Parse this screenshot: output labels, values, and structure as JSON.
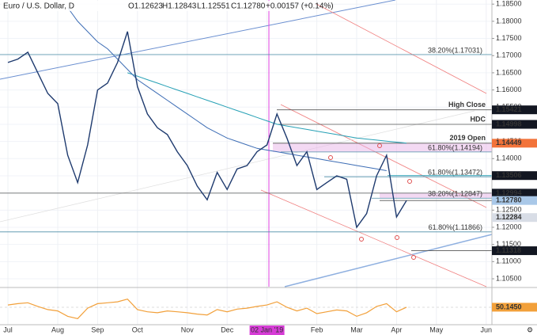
{
  "chart_data": [
    {
      "type": "line",
      "title": "Euro / U.S. Dollar, D",
      "ohlc": [
        "O1.12623",
        "H1.12843",
        "L1.12551",
        "C1.12780",
        "+0.00157 (+0.14%)"
      ],
      "categories": [
        "Jul",
        null,
        null,
        null,
        null,
        "Aug",
        null,
        null,
        null,
        "Sep",
        null,
        null,
        null,
        "Oct",
        null,
        null,
        null,
        null,
        "Nov",
        null,
        null,
        null,
        "Dec",
        null,
        null,
        null,
        "02 Jan '19",
        null,
        null,
        null,
        null,
        "Feb",
        null,
        null,
        null,
        "Mar",
        null,
        null,
        null,
        "Apr",
        null,
        null,
        null,
        "May",
        null,
        null,
        null,
        null,
        "Jun"
      ],
      "highlight_category": 26,
      "series": [
        {
          "color": "#1e3a6e",
          "values": [
            1.168,
            1.169,
            1.171,
            1.165,
            1.159,
            1.156,
            1.141,
            1.133,
            1.144,
            1.16,
            1.162,
            1.168,
            1.177,
            1.161,
            1.153,
            1.149,
            1.147,
            1.142,
            1.138,
            1.132,
            1.128,
            1.136,
            1.131,
            1.137,
            1.138,
            1.142,
            1.144,
            1.153,
            1.146,
            1.138,
            1.142,
            1.131,
            1.133,
            1.135,
            1.134,
            1.12,
            1.124,
            1.135,
            1.141,
            1.123,
            1.1278,
            null,
            null,
            null,
            null,
            null,
            null,
            null,
            null
          ]
        },
        {
          "color": "#3d6db5",
          "values": [
            null,
            null,
            null,
            null,
            null,
            null,
            1.184,
            1.18,
            1.177,
            1.174,
            1.172,
            1.169,
            1.166,
            1.163,
            1.161,
            1.159,
            1.157,
            1.155,
            1.153,
            1.151,
            1.149,
            1.1475,
            1.146,
            1.145,
            1.144,
            1.143,
            1.1425,
            1.142,
            1.1415,
            1.141,
            1.1405,
            1.14,
            1.1395,
            1.139,
            1.1385,
            1.138,
            1.1375,
            1.137,
            1.1365,
            null,
            null,
            null,
            null,
            null,
            null,
            null,
            null,
            null,
            null
          ]
        },
        {
          "color": "#26a0b5",
          "values": [
            null,
            null,
            null,
            null,
            null,
            null,
            null,
            null,
            null,
            null,
            null,
            null,
            1.165,
            1.164,
            1.163,
            1.162,
            1.161,
            1.16,
            1.159,
            1.158,
            1.157,
            1.156,
            1.155,
            1.154,
            1.153,
            1.152,
            1.151,
            1.15,
            1.1495,
            1.149,
            1.1485,
            1.148,
            1.1475,
            1.147,
            1.1465,
            1.146,
            1.1457,
            1.1454,
            1.1451,
            1.1448,
            1.1445,
            null,
            null,
            null,
            null,
            null,
            null,
            null,
            null
          ]
        }
      ],
      "ylim": [
        1.1027,
        1.1862
      ],
      "yticks": [
        {
          "value": 1.105,
          "label": "1.10500"
        },
        {
          "value": 1.11,
          "label": "1.11000"
        },
        {
          "value": 1.115,
          "label": "1.11500"
        },
        {
          "value": 1.12,
          "label": "1.12000"
        },
        {
          "value": 1.125,
          "label": "1.12500"
        },
        {
          "value": 1.13,
          "label": "1.13000"
        },
        {
          "value": 1.135,
          "label": "1.13500"
        },
        {
          "value": 1.14,
          "label": "1.14000"
        },
        {
          "value": 1.145,
          "label": "1.14500"
        },
        {
          "value": 1.15,
          "label": "1.15000"
        },
        {
          "value": 1.155,
          "label": "1.15500"
        },
        {
          "value": 1.16,
          "label": "1.16000"
        },
        {
          "value": 1.165,
          "label": "1.16500"
        },
        {
          "value": 1.17,
          "label": "1.17000"
        },
        {
          "value": 1.175,
          "label": "1.17500"
        },
        {
          "value": 1.18,
          "label": "1.18000"
        },
        {
          "value": 1.185,
          "label": "1.18500"
        }
      ],
      "grid": true,
      "levels": [
        {
          "label": "High Close",
          "value": 1.15421,
          "value_label": "1.15421",
          "color": "#131722"
        },
        {
          "label": "HDC",
          "value": 1.14998,
          "value_label": "1.14998",
          "color": "#131722"
        },
        {
          "label": "2019 Open",
          "value": 1.14449,
          "value_label": "1.14449",
          "color": "#f2733a"
        },
        {
          "value": 1.13506,
          "value_label": "1.13506",
          "color": "#131722"
        },
        {
          "value": 1.12994,
          "value_label": "1.12994",
          "color": "#131722"
        },
        {
          "value": 1.1278,
          "value_label": "1.12780",
          "color": "#a9c8e8"
        },
        {
          "value": 1.12284,
          "value_label": "1.12284",
          "color": "#d8dde6"
        },
        {
          "value": 1.11318,
          "value_label": "1.11318",
          "color": "#131722"
        }
      ],
      "fibs": [
        {
          "label": "38.20%(1.17031)",
          "value": 1.17031
        },
        {
          "label": "61.80%(1.14194)",
          "value": 1.14194
        },
        {
          "label": "61.80%(1.13472)",
          "value": 1.13472
        },
        {
          "label": "38.20%(1.12847)",
          "value": 1.12847
        },
        {
          "label": "61.80%(1.11866)",
          "value": 1.11866
        }
      ]
    },
    {
      "type": "line",
      "color": "#f2a03a",
      "values": [
        55,
        58,
        60,
        52,
        45,
        42,
        30,
        25,
        48,
        58,
        60,
        62,
        68,
        45,
        40,
        38,
        42,
        40,
        38,
        35,
        33,
        45,
        40,
        46,
        48,
        52,
        55,
        62,
        50,
        42,
        48,
        36,
        40,
        44,
        42,
        30,
        38,
        52,
        58,
        40,
        50.145,
        null,
        null,
        null,
        null,
        null,
        null,
        null,
        null
      ],
      "value_labels": [
        null,
        null,
        null,
        null,
        null,
        null,
        null,
        null,
        null,
        null,
        null,
        null,
        null,
        null,
        null,
        null,
        null,
        null,
        null,
        null,
        null,
        null,
        null,
        null,
        null,
        null,
        null,
        null,
        null,
        null,
        null,
        null,
        null,
        null,
        null,
        null,
        null,
        null,
        null,
        null,
        "50.1450",
        null,
        null,
        null,
        null,
        null,
        null,
        null,
        null
      ],
      "ylim": [
        15,
        85
      ]
    }
  ]
}
